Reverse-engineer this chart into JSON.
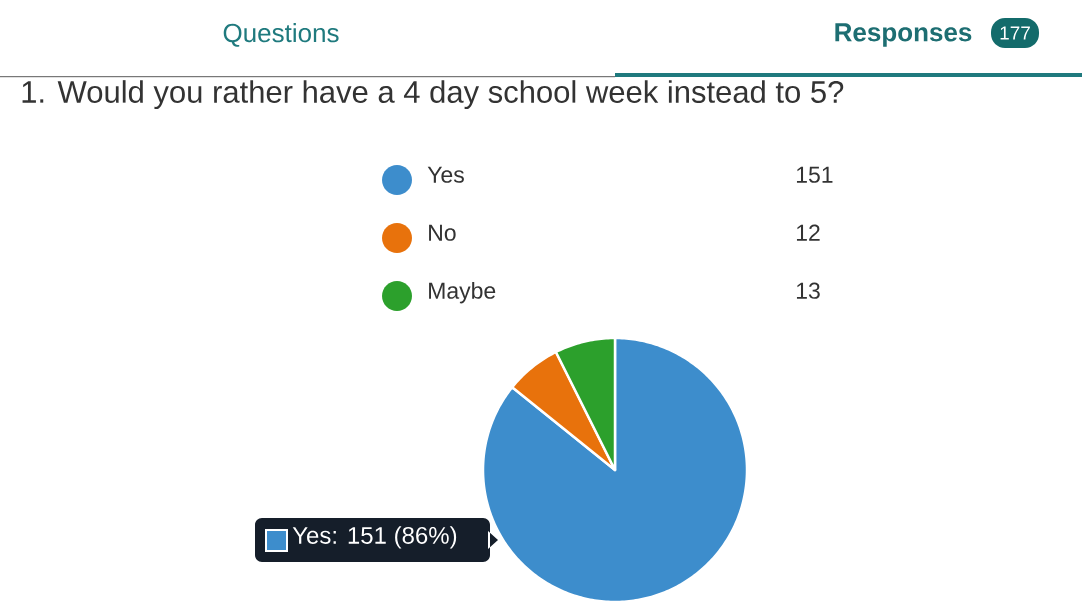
{
  "chart_data": {
    "type": "pie",
    "title": "1. Would you rather have a 4 day school week instead to 5?",
    "categories": [
      "Yes",
      "No",
      "Maybe"
    ],
    "values": [
      151,
      12,
      13
    ],
    "colors": [
      "#3d8dcc",
      "#e8720c",
      "#2ca02c"
    ],
    "value_labels": [
      "151",
      "12",
      "13"
    ],
    "legend": "top",
    "annotations": [
      "Questions",
      "Responses",
      "177",
      "Yes: 151 (86%)"
    ]
  }
}
